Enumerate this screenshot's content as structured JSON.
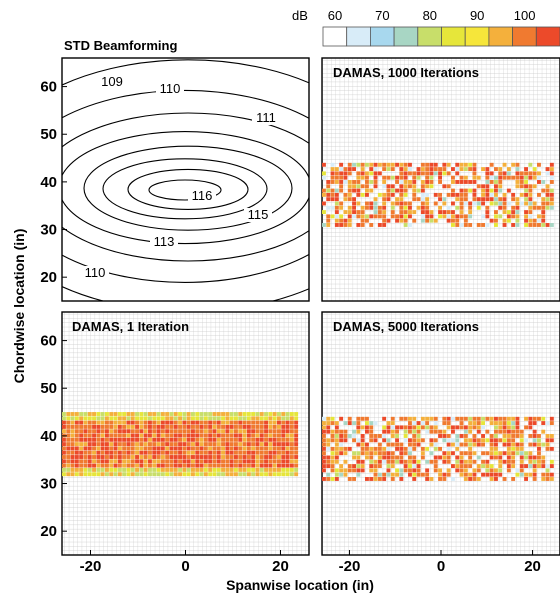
{
  "chart_data": [
    {
      "type": "contour",
      "panel": "top-left",
      "title": "STD Beamforming",
      "contour_levels": [
        109,
        110,
        111,
        112,
        113,
        114,
        115,
        116
      ],
      "contour_labels": [
        "109",
        "110",
        "111",
        "116",
        "115",
        "113",
        "110"
      ],
      "xlim": [
        -26,
        26
      ],
      "ylim": [
        15,
        66
      ],
      "yticks": [
        "20",
        "30",
        "40",
        "50",
        "60"
      ]
    },
    {
      "type": "heatmap",
      "panel": "top-right",
      "title": "DAMAS, 1000 Iterations",
      "xlim": [
        -26,
        26
      ],
      "ylim": [
        15,
        66
      ],
      "source_region": {
        "x": [
          -26,
          24
        ],
        "y": [
          31,
          44
        ]
      }
    },
    {
      "type": "heatmap",
      "panel": "bottom-left",
      "title": "DAMAS, 1 Iteration",
      "xlim": [
        -26,
        26
      ],
      "ylim": [
        15,
        66
      ],
      "source_region": {
        "x": [
          -26,
          23
        ],
        "y": [
          32,
          45
        ]
      },
      "xticks": [
        "-20",
        "0",
        "20"
      ],
      "yticks": [
        "20",
        "30",
        "40",
        "50",
        "60"
      ]
    },
    {
      "type": "heatmap",
      "panel": "bottom-right",
      "title": "DAMAS, 5000 Iterations",
      "xlim": [
        -26,
        26
      ],
      "ylim": [
        15,
        66
      ],
      "source_region": {
        "x": [
          -26,
          24
        ],
        "y": [
          31,
          44
        ]
      },
      "xticks": [
        "-20",
        "0",
        "20"
      ]
    }
  ],
  "colorbar": {
    "unit": "dB",
    "ticks": [
      "60",
      "70",
      "80",
      "90",
      "100"
    ],
    "colors": [
      "#ffffff",
      "#d8ecf8",
      "#a8d8ee",
      "#a8d6c4",
      "#c8de6a",
      "#e6e63a",
      "#f6e63a",
      "#f4b03c",
      "#f07a30",
      "#ec4a2a"
    ]
  },
  "axes": {
    "xlabel": "Spanwise location (in)",
    "ylabel": "Chordwise location (in)"
  }
}
